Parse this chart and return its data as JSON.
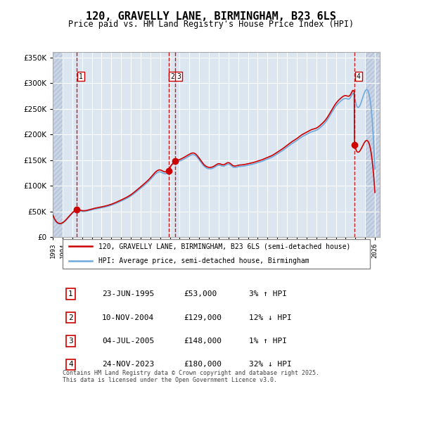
{
  "title_line1": "120, GRAVELLY LANE, BIRMINGHAM, B23 6LS",
  "title_line2": "Price paid vs. HM Land Registry's House Price Index (HPI)",
  "xlabel": "",
  "ylabel": "",
  "ylim": [
    0,
    360000
  ],
  "yticks": [
    0,
    50000,
    100000,
    150000,
    200000,
    250000,
    300000,
    350000
  ],
  "ytick_labels": [
    "£0",
    "£50K",
    "£100K",
    "£150K",
    "£200K",
    "£250K",
    "£300K",
    "£350K"
  ],
  "bg_color": "#dce6f1",
  "hatch_color": "#c0cfe0",
  "grid_color": "#ffffff",
  "red_line_color": "#cc0000",
  "blue_line_color": "#6fa8dc",
  "marker_color": "#cc0000",
  "dashed_color": "#cc0000",
  "transaction_dates": [
    1995.47,
    2004.86,
    2005.5,
    2023.9
  ],
  "transaction_prices": [
    53000,
    129000,
    148000,
    180000
  ],
  "transaction_labels": [
    "1",
    "2",
    "3",
    "4"
  ],
  "legend_red": "120, GRAVELLY LANE, BIRMINGHAM, B23 6LS (semi-detached house)",
  "legend_blue": "HPI: Average price, semi-detached house, Birmingham",
  "table_rows": [
    [
      "1",
      "23-JUN-1995",
      "£53,000",
      "3% ↑ HPI"
    ],
    [
      "2",
      "10-NOV-2004",
      "£129,000",
      "12% ↓ HPI"
    ],
    [
      "3",
      "04-JUL-2005",
      "£148,000",
      "1% ↑ HPI"
    ],
    [
      "4",
      "24-NOV-2023",
      "£180,000",
      "32% ↓ HPI"
    ]
  ],
  "footnote": "Contains HM Land Registry data © Crown copyright and database right 2025.\nThis data is licensed under the Open Government Licence v3.0."
}
